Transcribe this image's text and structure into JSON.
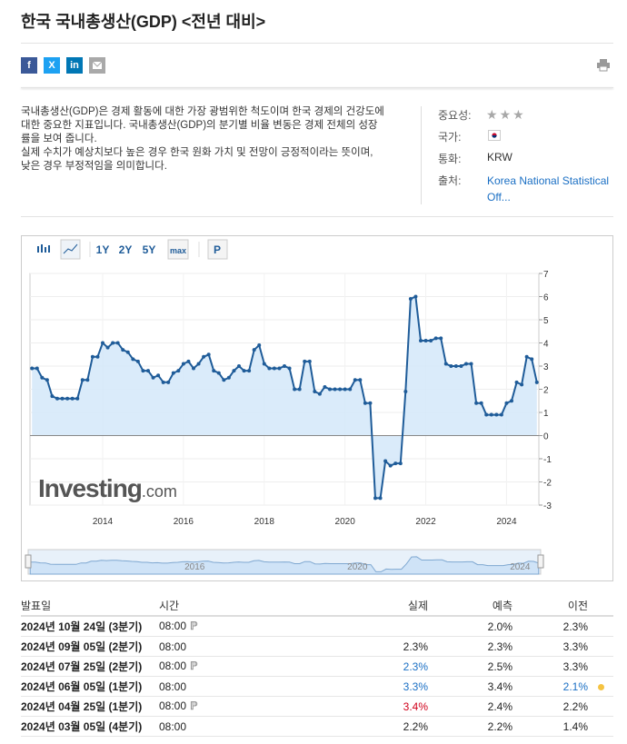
{
  "header": {
    "title": "한국 국내총생산(GDP) <전년 대비>",
    "share_buttons": [
      "f",
      "X",
      "in"
    ]
  },
  "description": [
    "국내총생산(GDP)은 경제 활동에 대한 가장 광범위한 척도이며 한국 경제의 건강도에 대한 중요한 지표입니다. 국내총생산(GDP)의 분기별 비율 변동은 경제 전체의 성장률을 보여 줍니다.",
    "실제 수치가 예상치보다 높은 경우 한국 원화 가치 및 전망이 긍정적이라는 뜻이며, 낮은 경우 부정적임을 의미합니다."
  ],
  "info": {
    "importance_label": "중요성:",
    "importance": 3,
    "country_label": "국가:",
    "currency_label": "통화:",
    "currency": "KRW",
    "source_label": "출처:",
    "source": "Korea National Statistical Off..."
  },
  "toolbar": [
    "1Y",
    "2Y",
    "5Y",
    "max",
    "P"
  ],
  "watermark": {
    "brand": "Investing",
    "suffix": ".com"
  },
  "chart_data": {
    "type": "line",
    "color": "#1f5c99",
    "fill": "#d3e7f9",
    "x": [
      2012.25,
      2012.375,
      2012.5,
      2012.625,
      2012.75,
      2012.875,
      2013,
      2013.125,
      2013.25,
      2013.375,
      2013.5,
      2013.625,
      2013.75,
      2013.875,
      2014,
      2014.125,
      2014.25,
      2014.375,
      2014.5,
      2014.625,
      2014.75,
      2014.875,
      2015,
      2015.125,
      2015.25,
      2015.375,
      2015.5,
      2015.625,
      2015.75,
      2015.875,
      2016,
      2016.125,
      2016.25,
      2016.375,
      2016.5,
      2016.625,
      2016.75,
      2016.875,
      2017,
      2017.125,
      2017.25,
      2017.375,
      2017.5,
      2017.625,
      2017.75,
      2017.875,
      2018,
      2018.125,
      2018.25,
      2018.375,
      2018.5,
      2018.625,
      2018.75,
      2018.875,
      2019,
      2019.125,
      2019.25,
      2019.375,
      2019.5,
      2019.625,
      2019.75,
      2019.875,
      2020,
      2020.125,
      2020.25,
      2020.375,
      2020.5,
      2020.625,
      2020.75,
      2020.875,
      2021,
      2021.125,
      2021.25,
      2021.375,
      2021.5,
      2021.625,
      2021.75,
      2021.875,
      2022,
      2022.125,
      2022.25,
      2022.375,
      2022.5,
      2022.625,
      2022.75,
      2022.875,
      2023,
      2023.125,
      2023.25,
      2023.375,
      2023.5,
      2023.625,
      2023.75,
      2023.875,
      2024,
      2024.125,
      2024.25,
      2024.375,
      2024.5,
      2024.625,
      2024.75
    ],
    "values": [
      2.9,
      2.9,
      2.5,
      2.4,
      1.7,
      1.6,
      1.6,
      1.6,
      1.6,
      1.6,
      2.4,
      2.4,
      3.4,
      3.4,
      4.0,
      3.8,
      4.0,
      4.0,
      3.7,
      3.6,
      3.3,
      3.2,
      2.8,
      2.8,
      2.5,
      2.6,
      2.3,
      2.3,
      2.7,
      2.8,
      3.1,
      3.2,
      2.9,
      3.1,
      3.4,
      3.5,
      2.8,
      2.7,
      2.4,
      2.5,
      2.8,
      3.0,
      2.8,
      2.8,
      3.7,
      3.9,
      3.1,
      2.9,
      2.9,
      2.9,
      3.0,
      2.9,
      2.0,
      2.0,
      3.2,
      3.2,
      1.9,
      1.8,
      2.1,
      2.0,
      2.0,
      2.0,
      2.0,
      2.0,
      2.4,
      2.4,
      1.4,
      1.4,
      -2.7,
      -2.7,
      -1.1,
      -1.3,
      -1.2,
      -1.2,
      1.9,
      5.9,
      6.0,
      4.1,
      4.1,
      4.1,
      4.2,
      4.2,
      3.1,
      3.0,
      3.0,
      3.0,
      3.1,
      3.1,
      1.4,
      1.4,
      0.9,
      0.9,
      0.9,
      0.9,
      1.4,
      1.5,
      2.3,
      2.2,
      3.4,
      3.3,
      2.3
    ],
    "xlim": [
      2012.2,
      2024.8
    ],
    "ylim": [
      -3,
      7
    ],
    "xticks": [
      2014,
      2016,
      2018,
      2020,
      2022,
      2024
    ],
    "yticks": [
      -3,
      -2,
      -1,
      0,
      1,
      2,
      3,
      4,
      5,
      6,
      7
    ],
    "navigator_ticks": [
      2016,
      2020,
      2024
    ],
    "grid": true
  },
  "table": {
    "columns": [
      "발표일",
      "시간",
      "실제",
      "예측",
      "이전"
    ],
    "rows": [
      {
        "date": "2024년 10월 24일 (3분기)",
        "time": "08:00",
        "preliminary": true,
        "actual": null,
        "forecast": "2.0%",
        "previous": "2.3%"
      },
      {
        "date": "2024년 09월 05일 (2분기)",
        "time": "08:00",
        "preliminary": false,
        "actual": "2.3%",
        "forecast": "2.3%",
        "previous": "3.3%"
      },
      {
        "date": "2024년 07월 25일 (2분기)",
        "time": "08:00",
        "preliminary": true,
        "actual": "2.3%",
        "actual_color": "#1a6fc4",
        "forecast": "2.5%",
        "previous": "3.3%"
      },
      {
        "date": "2024년 06월 05일 (1분기)",
        "time": "08:00",
        "preliminary": false,
        "actual": "3.3%",
        "actual_color": "#1a6fc4",
        "forecast": "3.4%",
        "previous": "2.1%",
        "previous_color": "#1a6fc4",
        "previous_alert": true
      },
      {
        "date": "2024년 04월 25일 (1분기)",
        "time": "08:00",
        "preliminary": true,
        "actual": "3.4%",
        "actual_color": "#d0021b",
        "forecast": "2.4%",
        "previous": "2.2%"
      },
      {
        "date": "2024년 03월 05일 (4분기)",
        "time": "08:00",
        "preliminary": false,
        "actual": "2.2%",
        "forecast": "2.2%",
        "previous": "1.4%"
      }
    ]
  }
}
